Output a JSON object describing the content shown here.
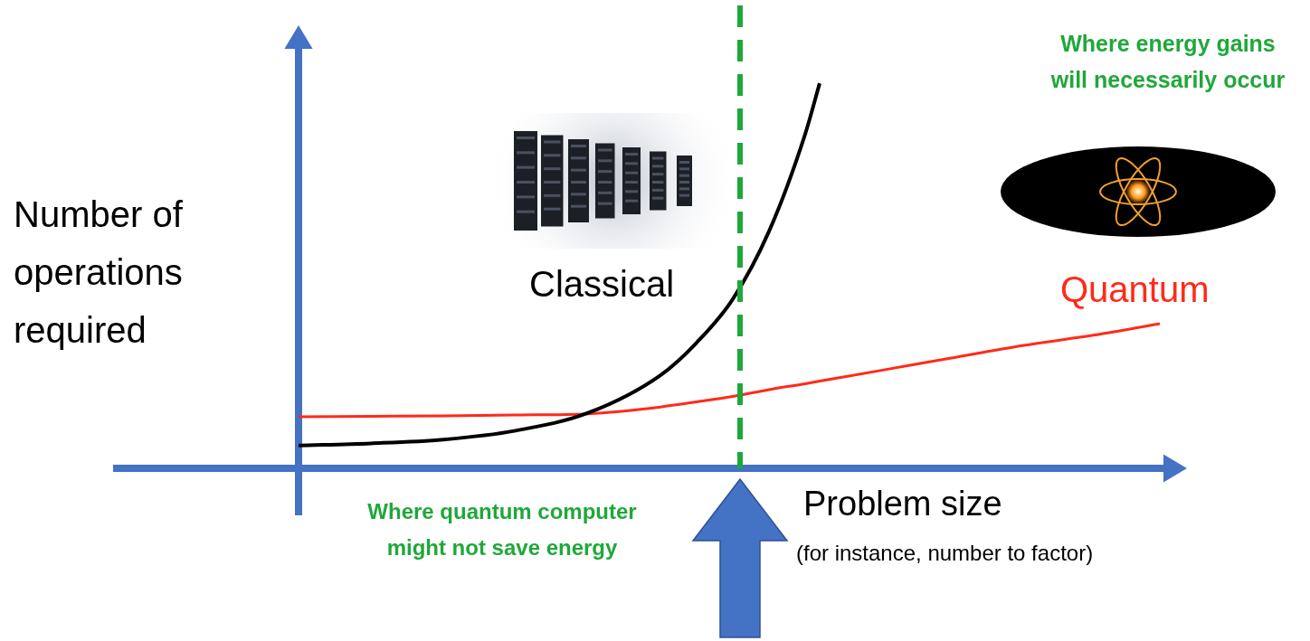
{
  "chart_data": {
    "type": "line",
    "x": [
      0,
      1,
      2,
      3,
      4,
      5,
      5.5,
      6,
      6.5,
      7,
      7.2,
      8,
      9,
      10,
      11,
      11.9
    ],
    "series": [
      {
        "name": "Classical",
        "color": "#000000",
        "values": [
          0.54,
          0.59,
          0.68,
          0.89,
          1.31,
          2.2,
          2.97,
          4.0,
          5.6,
          7.9,
          9.1,
          null,
          null,
          null,
          null,
          null
        ]
      },
      {
        "name": "Quantum",
        "color": "#ff2a1a",
        "values": [
          1.22,
          1.23,
          1.24,
          1.26,
          1.29,
          1.45,
          1.57,
          1.7,
          1.86,
          2.0,
          2.06,
          2.3,
          2.6,
          2.9,
          3.15,
          3.42
        ]
      }
    ],
    "xlim": [
      0,
      12
    ],
    "ylim": [
      0,
      10
    ],
    "x_label": "Problem size",
    "x_sublabel": "(for instance, number to factor)",
    "y_label": "Number of operations required",
    "tick_labels": false,
    "grid": false,
    "vertical_line": {
      "x": 6.1,
      "color": "#1fa83a",
      "line_style": "dashed"
    },
    "annotations": [
      {
        "text": "Where energy gains will necessarily occur",
        "color": "#1fa83a"
      },
      {
        "text": "Where quantum computer might not save energy",
        "color": "#1fa83a"
      }
    ]
  }
}
